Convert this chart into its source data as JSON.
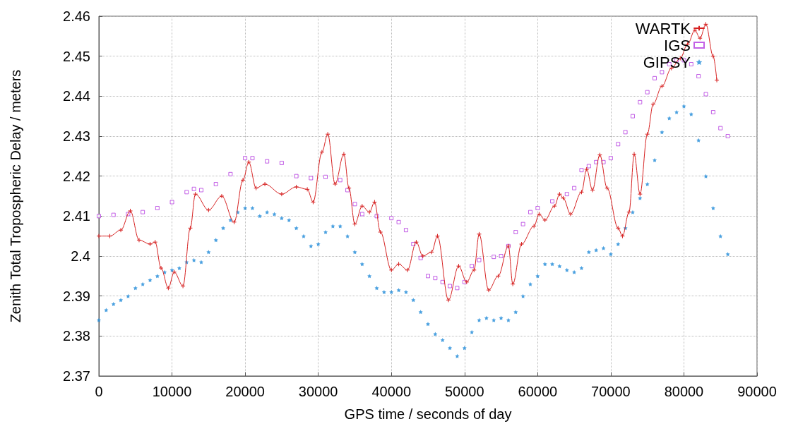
{
  "chart_data": {
    "type": "line",
    "xlabel": "GPS time / seconds of day",
    "ylabel": "Zenith Total Tropospheric Delay / meters",
    "xlim": [
      0,
      90000
    ],
    "xticks": [
      0,
      10000,
      20000,
      30000,
      40000,
      50000,
      60000,
      70000,
      80000,
      90000
    ],
    "ylim": [
      2.37,
      2.46
    ],
    "yticks": [
      2.37,
      2.38,
      2.39,
      2.4,
      2.41,
      2.42,
      2.43,
      2.44,
      2.45,
      2.46
    ],
    "grid": true,
    "legend": "top right",
    "series": [
      {
        "name": "WARTK",
        "marker": "cross",
        "line_style": "solid",
        "color": "#d62020",
        "x": [
          0,
          1500,
          3000,
          4300,
          5500,
          7000,
          7700,
          8500,
          9500,
          10300,
          11500,
          12500,
          13200,
          15000,
          16800,
          18500,
          19700,
          20500,
          21500,
          22700,
          25000,
          27000,
          28500,
          29300,
          30500,
          31300,
          32300,
          33500,
          34200,
          35000,
          36000,
          37000,
          37700,
          38500,
          40000,
          41000,
          42200,
          43400,
          44300,
          45500,
          46300,
          47800,
          49200,
          50300,
          51300,
          52000,
          53300,
          54600,
          56000,
          56600,
          57800,
          59500,
          60200,
          61000,
          62300,
          63000,
          63500,
          64500,
          66000,
          66700,
          67500,
          68500,
          69500,
          71000,
          71600,
          72500,
          73200,
          74000,
          75000,
          75800,
          77000,
          78300,
          79500,
          80500,
          81500,
          82200,
          83000,
          84000,
          84500
        ],
        "values": [
          2.405,
          2.405,
          2.4065,
          2.4113,
          2.404,
          2.403,
          2.4035,
          2.397,
          2.392,
          2.396,
          2.3925,
          2.407,
          2.4155,
          2.4115,
          2.415,
          2.4085,
          2.419,
          2.4235,
          2.417,
          2.418,
          2.4155,
          2.4173,
          2.4167,
          2.4135,
          2.426,
          2.4305,
          2.418,
          2.4255,
          2.417,
          2.408,
          2.4125,
          2.411,
          2.4135,
          2.406,
          2.3965,
          2.398,
          2.3965,
          2.4035,
          2.4,
          2.401,
          2.405,
          2.389,
          2.3975,
          2.3935,
          2.3965,
          2.4055,
          2.3915,
          2.395,
          2.4025,
          2.393,
          2.403,
          2.4075,
          2.4105,
          2.409,
          2.4125,
          2.4155,
          2.4145,
          2.4105,
          2.416,
          2.4217,
          2.4165,
          2.4253,
          2.417,
          2.407,
          2.405,
          2.411,
          2.4255,
          2.4155,
          2.4305,
          2.438,
          2.4425,
          2.447,
          2.4495,
          2.453,
          2.4565,
          2.4545,
          2.458,
          2.45,
          2.444
        ]
      },
      {
        "name": "IGS",
        "type": "scatter",
        "marker": "square",
        "color": "#b43ae0",
        "x": [
          0,
          2000,
          4000,
          6000,
          8000,
          10000,
          12000,
          13000,
          14000,
          16000,
          18000,
          20000,
          21000,
          23000,
          25000,
          27000,
          29000,
          31000,
          33000,
          34000,
          35000,
          36000,
          38000,
          40000,
          41000,
          42000,
          43000,
          44000,
          45000,
          46000,
          47000,
          48000,
          49000,
          50000,
          51000,
          52000,
          54000,
          55000,
          56000,
          57000,
          58000,
          59000,
          60000,
          62000,
          64000,
          65000,
          66000,
          67000,
          68000,
          69000,
          70000,
          71000,
          72000,
          73000,
          74000,
          75000,
          76000,
          77000,
          78000,
          79000,
          80000,
          81000,
          82000,
          83000,
          84000,
          85000,
          86000
        ],
        "values": [
          2.41,
          2.4103,
          2.4105,
          2.411,
          2.412,
          2.4135,
          2.416,
          2.4168,
          2.4165,
          2.418,
          2.4205,
          2.4245,
          2.4245,
          2.4237,
          2.4233,
          2.42,
          2.4195,
          2.4198,
          2.419,
          2.4165,
          2.413,
          2.4105,
          2.41,
          2.4095,
          2.4085,
          2.4065,
          2.403,
          2.3995,
          2.395,
          2.3945,
          2.3935,
          2.3925,
          2.392,
          2.3935,
          2.3975,
          2.399,
          2.3998,
          2.4,
          2.4025,
          2.406,
          2.408,
          2.411,
          2.412,
          2.4137,
          2.4155,
          2.417,
          2.4215,
          2.4225,
          2.4235,
          2.4235,
          2.4245,
          2.428,
          2.431,
          2.435,
          2.4385,
          2.441,
          2.4445,
          2.446,
          2.448,
          2.449,
          2.449,
          2.448,
          2.445,
          2.4405,
          2.436,
          2.432,
          2.43
        ]
      },
      {
        "name": "GIPSY",
        "type": "scatter",
        "marker": "star",
        "color": "#1e8ad8",
        "x": [
          0,
          1000,
          2000,
          3000,
          4000,
          5000,
          6000,
          7000,
          8000,
          9000,
          10000,
          11000,
          12000,
          13000,
          14000,
          15000,
          16000,
          17000,
          18000,
          19000,
          20000,
          21000,
          22000,
          23000,
          24000,
          25000,
          26000,
          27000,
          28000,
          29000,
          30000,
          31000,
          32000,
          33000,
          34000,
          35000,
          36000,
          37000,
          38000,
          39000,
          40000,
          41000,
          42000,
          43000,
          44000,
          45000,
          46000,
          47000,
          48000,
          49000,
          50000,
          51000,
          52000,
          53000,
          54000,
          55000,
          56000,
          57000,
          58000,
          59000,
          60000,
          61000,
          62000,
          63000,
          64000,
          65000,
          66000,
          67000,
          68000,
          69000,
          70000,
          71000,
          72000,
          73000,
          74000,
          75000,
          76000,
          77000,
          78000,
          79000,
          80000,
          81000,
          82000,
          83000,
          84000,
          85000,
          86000
        ],
        "values": [
          2.384,
          2.3865,
          2.388,
          2.389,
          2.39,
          2.392,
          2.393,
          2.394,
          2.395,
          2.396,
          2.3965,
          2.397,
          2.3985,
          2.399,
          2.3985,
          2.401,
          2.404,
          2.407,
          2.409,
          2.411,
          2.412,
          2.412,
          2.41,
          2.411,
          2.4105,
          2.4095,
          2.409,
          2.407,
          2.405,
          2.4025,
          2.403,
          2.406,
          2.4075,
          2.4075,
          2.405,
          2.401,
          2.398,
          2.395,
          2.392,
          2.391,
          2.391,
          2.3915,
          2.391,
          2.389,
          2.386,
          2.383,
          2.3805,
          2.379,
          2.377,
          2.375,
          2.377,
          2.381,
          2.384,
          2.3845,
          2.384,
          2.3845,
          2.384,
          2.386,
          2.39,
          2.393,
          2.395,
          2.398,
          2.398,
          2.3975,
          2.3965,
          2.396,
          2.397,
          2.401,
          2.4015,
          2.402,
          2.4005,
          2.403,
          2.407,
          2.411,
          2.4145,
          2.418,
          2.424,
          2.431,
          2.4345,
          2.436,
          2.4375,
          2.4355,
          2.429,
          2.42,
          2.412,
          2.405,
          2.4005
        ]
      }
    ]
  }
}
